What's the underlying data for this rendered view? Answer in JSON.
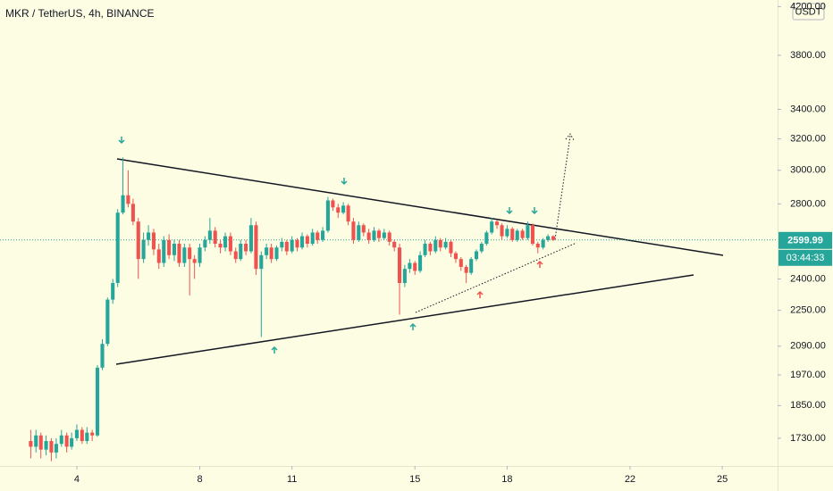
{
  "chart_data": {
    "type": "candlestick",
    "title": "MKR / TetherUS, 4h, BINANCE",
    "currency": "USDT",
    "countdown": "03:44:33",
    "last_price": 2599.99,
    "up_color": "#26a69a",
    "down_color": "#ef5350",
    "log_scale": true,
    "xlim": [
      1.5,
      26.8
    ],
    "xticks": [
      4,
      8,
      11,
      15,
      18,
      22,
      25
    ],
    "ylim": [
      1634,
      4257
    ],
    "yticks": [
      {
        "value": 1730,
        "label": "1730.00"
      },
      {
        "value": 1850,
        "label": "1850.00"
      },
      {
        "value": 1970,
        "label": "1970.00"
      },
      {
        "value": 2090,
        "label": "2090.00"
      },
      {
        "value": 2250,
        "label": "2250.00"
      },
      {
        "value": 2400,
        "label": "2400.00"
      },
      {
        "value": 2800,
        "label": "2800.00"
      },
      {
        "value": 3000,
        "label": "3000.00"
      },
      {
        "value": 3200,
        "label": "3200.00"
      },
      {
        "value": 3400,
        "label": "3400.00"
      },
      {
        "value": 3800,
        "label": "3800.00"
      },
      {
        "value": 4200,
        "label": "4200.00"
      }
    ],
    "x": [
      2.5,
      2.67,
      2.83,
      3,
      3.17,
      3.33,
      3.5,
      3.67,
      3.83,
      4,
      4.17,
      4.33,
      4.5,
      4.67,
      4.83,
      5,
      5.17,
      5.33,
      5.5,
      5.67,
      5.83,
      6,
      6.17,
      6.33,
      6.5,
      6.67,
      6.83,
      7,
      7.17,
      7.33,
      7.5,
      7.67,
      7.83,
      8,
      8.17,
      8.33,
      8.5,
      8.67,
      8.83,
      9,
      9.17,
      9.33,
      9.5,
      9.67,
      9.83,
      10,
      10.17,
      10.33,
      10.5,
      10.67,
      10.83,
      11,
      11.17,
      11.33,
      11.5,
      11.67,
      11.83,
      12,
      12.17,
      12.33,
      12.5,
      12.67,
      12.83,
      13,
      13.17,
      13.33,
      13.5,
      13.67,
      13.83,
      14,
      14.17,
      14.33,
      14.5,
      14.67,
      14.83,
      15,
      15.17,
      15.33,
      15.5,
      15.67,
      15.83,
      16,
      16.17,
      16.33,
      16.5,
      16.67,
      16.83,
      17,
      17.17,
      17.33,
      17.5,
      17.67,
      17.83,
      18,
      18.17,
      18.33,
      18.5,
      18.67,
      18.83,
      19,
      19.17,
      19.33,
      19.5
    ],
    "ohlc": [
      [
        1720,
        1760,
        1660,
        1700
      ],
      [
        1700,
        1760,
        1680,
        1740
      ],
      [
        1740,
        1750,
        1660,
        1690
      ],
      [
        1690,
        1740,
        1670,
        1720
      ],
      [
        1720,
        1730,
        1650,
        1680
      ],
      [
        1680,
        1730,
        1660,
        1710
      ],
      [
        1710,
        1760,
        1700,
        1740
      ],
      [
        1740,
        1750,
        1680,
        1700
      ],
      [
        1700,
        1750,
        1690,
        1730
      ],
      [
        1730,
        1780,
        1720,
        1760
      ],
      [
        1760,
        1770,
        1710,
        1720
      ],
      [
        1720,
        1770,
        1710,
        1750
      ],
      [
        1750,
        1760,
        1720,
        1740
      ],
      [
        1740,
        2010,
        1735,
        2000
      ],
      [
        2000,
        2120,
        1990,
        2100
      ],
      [
        2100,
        2310,
        2090,
        2300
      ],
      [
        2300,
        2400,
        2280,
        2380
      ],
      [
        2380,
        2770,
        2360,
        2750
      ],
      [
        2750,
        3080,
        2740,
        2850
      ],
      [
        2850,
        3000,
        2780,
        2800
      ],
      [
        2800,
        2830,
        2680,
        2700
      ],
      [
        2700,
        2720,
        2400,
        2500
      ],
      [
        2500,
        2640,
        2480,
        2600
      ],
      [
        2600,
        2680,
        2570,
        2640
      ],
      [
        2640,
        2660,
        2520,
        2550
      ],
      [
        2550,
        2580,
        2450,
        2480
      ],
      [
        2480,
        2620,
        2460,
        2600
      ],
      [
        2600,
        2630,
        2500,
        2520
      ],
      [
        2520,
        2600,
        2490,
        2580
      ],
      [
        2580,
        2600,
        2460,
        2480
      ],
      [
        2480,
        2580,
        2460,
        2560
      ],
      [
        2560,
        2580,
        2320,
        2500
      ],
      [
        2500,
        2520,
        2400,
        2480
      ],
      [
        2480,
        2580,
        2460,
        2560
      ],
      [
        2560,
        2620,
        2540,
        2600
      ],
      [
        2600,
        2720,
        2580,
        2650
      ],
      [
        2650,
        2670,
        2560,
        2580
      ],
      [
        2580,
        2600,
        2530,
        2560
      ],
      [
        2560,
        2640,
        2540,
        2620
      ],
      [
        2620,
        2640,
        2520,
        2540
      ],
      [
        2540,
        2560,
        2480,
        2500
      ],
      [
        2500,
        2600,
        2490,
        2580
      ],
      [
        2580,
        2600,
        2520,
        2540
      ],
      [
        2540,
        2720,
        2530,
        2680
      ],
      [
        2680,
        2700,
        2420,
        2450
      ],
      [
        2450,
        2540,
        2130,
        2520
      ],
      [
        2520,
        2580,
        2500,
        2560
      ],
      [
        2560,
        2580,
        2480,
        2500
      ],
      [
        2500,
        2570,
        2490,
        2560
      ],
      [
        2560,
        2610,
        2540,
        2590
      ],
      [
        2590,
        2600,
        2520,
        2540
      ],
      [
        2540,
        2620,
        2530,
        2600
      ],
      [
        2600,
        2610,
        2540,
        2560
      ],
      [
        2560,
        2640,
        2550,
        2620
      ],
      [
        2620,
        2630,
        2560,
        2580
      ],
      [
        2580,
        2660,
        2570,
        2640
      ],
      [
        2640,
        2650,
        2580,
        2600
      ],
      [
        2600,
        2670,
        2590,
        2650
      ],
      [
        2650,
        2840,
        2640,
        2820
      ],
      [
        2820,
        2830,
        2760,
        2780
      ],
      [
        2780,
        2800,
        2720,
        2750
      ],
      [
        2750,
        2810,
        2740,
        2790
      ],
      [
        2790,
        2800,
        2680,
        2700
      ],
      [
        2700,
        2720,
        2580,
        2600
      ],
      [
        2600,
        2700,
        2590,
        2680
      ],
      [
        2680,
        2690,
        2620,
        2640
      ],
      [
        2640,
        2660,
        2580,
        2600
      ],
      [
        2600,
        2670,
        2590,
        2650
      ],
      [
        2650,
        2660,
        2590,
        2610
      ],
      [
        2610,
        2660,
        2600,
        2640
      ],
      [
        2640,
        2650,
        2570,
        2590
      ],
      [
        2590,
        2600,
        2540,
        2560
      ],
      [
        2560,
        2580,
        2230,
        2380
      ],
      [
        2380,
        2470,
        2360,
        2450
      ],
      [
        2450,
        2500,
        2430,
        2480
      ],
      [
        2480,
        2490,
        2420,
        2440
      ],
      [
        2440,
        2540,
        2430,
        2520
      ],
      [
        2520,
        2600,
        2510,
        2580
      ],
      [
        2580,
        2590,
        2520,
        2540
      ],
      [
        2540,
        2620,
        2530,
        2600
      ],
      [
        2600,
        2610,
        2540,
        2560
      ],
      [
        2560,
        2610,
        2550,
        2590
      ],
      [
        2590,
        2600,
        2510,
        2530
      ],
      [
        2530,
        2540,
        2480,
        2500
      ],
      [
        2500,
        2510,
        2440,
        2460
      ],
      [
        2460,
        2470,
        2380,
        2430
      ],
      [
        2430,
        2510,
        2420,
        2500
      ],
      [
        2500,
        2550,
        2490,
        2540
      ],
      [
        2540,
        2590,
        2530,
        2580
      ],
      [
        2580,
        2650,
        2570,
        2640
      ],
      [
        2640,
        2720,
        2630,
        2700
      ],
      [
        2700,
        2710,
        2660,
        2680
      ],
      [
        2680,
        2690,
        2600,
        2620
      ],
      [
        2620,
        2680,
        2610,
        2660
      ],
      [
        2660,
        2670,
        2590,
        2600
      ],
      [
        2600,
        2660,
        2590,
        2650
      ],
      [
        2650,
        2660,
        2600,
        2610
      ],
      [
        2610,
        2700,
        2600,
        2680
      ],
      [
        2680,
        2690,
        2570,
        2580
      ],
      [
        2580,
        2590,
        2530,
        2560
      ],
      [
        2560,
        2610,
        2550,
        2600
      ],
      [
        2600,
        2630,
        2590,
        2620
      ],
      [
        2620,
        2625,
        2595,
        2600
      ]
    ]
  }
}
